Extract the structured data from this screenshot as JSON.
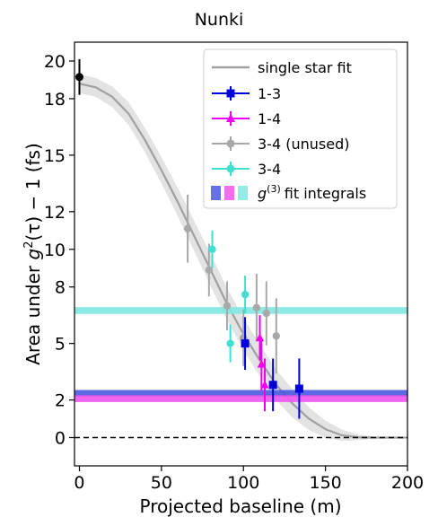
{
  "chart_data": {
    "type": "scatter",
    "title": "Nunki",
    "xlabel": "Projected baseline (m)",
    "ylabel_parts": [
      "Area under ",
      "g",
      "2",
      "(τ) − 1 (fs)"
    ],
    "xlim": [
      -3,
      200
    ],
    "ylim": [
      -1.5,
      21
    ],
    "xticks": [
      0,
      50,
      100,
      150,
      200
    ],
    "yticks": [
      0,
      2,
      5,
      8,
      10,
      12,
      15,
      18,
      20
    ],
    "ytick_labels": [
      "0",
      "2",
      "5",
      "8",
      "10",
      "12",
      "15",
      "18",
      "20"
    ],
    "grid": false,
    "legend_position": "top-right",
    "zero_line": {
      "y": 0,
      "style": "dashed",
      "color": "#000000"
    },
    "fit": {
      "name": "single star fit",
      "color": "#a0a0a0",
      "band_color": "#e3e3e3",
      "x": [
        0,
        10,
        20,
        30,
        40,
        50,
        60,
        70,
        80,
        90,
        100,
        110,
        120,
        130,
        140,
        150,
        160,
        170,
        180,
        190,
        200
      ],
      "y": [
        18.8,
        18.6,
        18.1,
        17.2,
        15.8,
        14.2,
        12.5,
        10.7,
        8.9,
        7.1,
        5.5,
        4.1,
        2.8,
        1.8,
        1.0,
        0.45,
        0.12,
        0.02,
        0.0,
        0.0,
        0.0
      ],
      "band_half_width": [
        0.5,
        0.5,
        0.55,
        0.6,
        0.65,
        0.7,
        0.75,
        0.8,
        0.85,
        0.85,
        0.85,
        0.85,
        0.8,
        0.75,
        0.6,
        0.45,
        0.3,
        0.15,
        0.05,
        0.02,
        0.0
      ]
    },
    "series": [
      {
        "name": "1-3",
        "color": "#0000dd",
        "marker": "square",
        "points": [
          {
            "x": 101,
            "y": 5.0,
            "xerr": 1.5,
            "yerr": 1.4
          },
          {
            "x": 118,
            "y": 2.8,
            "xerr": 1.5,
            "yerr": 1.4
          },
          {
            "x": 134,
            "y": 2.6,
            "xerr": 1.5,
            "yerr": 1.6
          }
        ]
      },
      {
        "name": "1-4",
        "color": "#ee00ee",
        "marker": "triangle",
        "points": [
          {
            "x": 110,
            "y": 5.3,
            "xerr": 1.0,
            "yerr": 1.2
          },
          {
            "x": 111,
            "y": 3.9,
            "xerr": 1.0,
            "yerr": 1.4
          },
          {
            "x": 113,
            "y": 2.8,
            "xerr": 1.0,
            "yerr": 1.4
          }
        ]
      },
      {
        "name": "3-4 (unused)",
        "color": "#a8a8a8",
        "marker": "circle",
        "points": [
          {
            "x": 66,
            "y": 11.1,
            "xerr": 1.0,
            "yerr": 1.8
          },
          {
            "x": 79,
            "y": 8.9,
            "xerr": 1.0,
            "yerr": 1.4
          },
          {
            "x": 90,
            "y": 7.0,
            "xerr": 1.0,
            "yerr": 1.3
          },
          {
            "x": 100,
            "y": 5.3,
            "xerr": 1.0,
            "yerr": 1.5
          },
          {
            "x": 108,
            "y": 6.9,
            "xerr": 1.0,
            "yerr": 1.8
          },
          {
            "x": 114,
            "y": 6.6,
            "xerr": 1.0,
            "yerr": 1.7
          },
          {
            "x": 120,
            "y": 5.4,
            "xerr": 1.0,
            "yerr": 2.0
          }
        ]
      },
      {
        "name": "3-4",
        "color": "#40e0d0",
        "marker": "circle",
        "points": [
          {
            "x": 81,
            "y": 10.0,
            "xerr": 1.0,
            "yerr": 1.0
          },
          {
            "x": 92,
            "y": 5.0,
            "xerr": 1.0,
            "yerr": 1.0
          },
          {
            "x": 101,
            "y": 7.6,
            "xerr": 1.0,
            "yerr": 1.0
          }
        ]
      }
    ],
    "integrals": {
      "legend_label": "fit integrals",
      "lines": [
        {
          "color": "#4b58e0",
          "y": 2.35,
          "halfwidth": 0.18
        },
        {
          "color": "#ee55ee",
          "y": 2.07,
          "halfwidth": 0.18
        },
        {
          "color": "#7fe7e0",
          "y": 6.75,
          "halfwidth": 0.18
        }
      ]
    }
  }
}
